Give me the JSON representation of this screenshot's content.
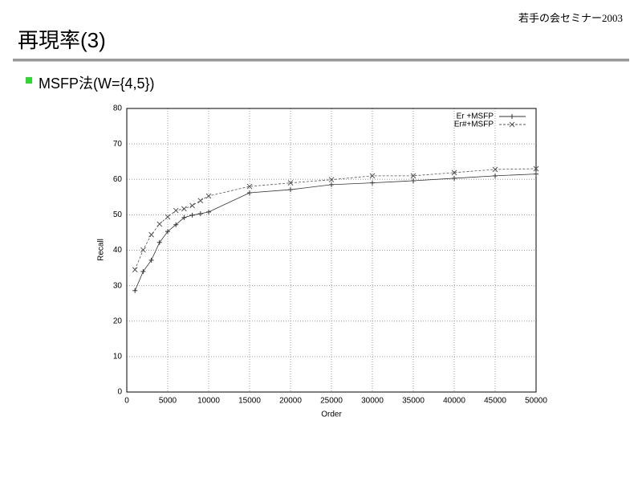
{
  "header": {
    "title": "再現率(3)",
    "seminar": "若手の会セミナー2003"
  },
  "bullet": "MSFP法(W={4,5})",
  "chart_data": {
    "type": "line",
    "x_label": "Order",
    "y_label": "Recall",
    "x": [
      1000,
      2000,
      3000,
      4000,
      5000,
      6000,
      7000,
      8000,
      9000,
      10000,
      15000,
      20000,
      25000,
      30000,
      35000,
      40000,
      45000,
      50000
    ],
    "series": [
      {
        "name": "Er +MSFP",
        "color": "#333333",
        "marker": "+",
        "dashed": false,
        "values": [
          28.6,
          34,
          37.2,
          42.2,
          45.3,
          47.2,
          49.2,
          49.9,
          50.3,
          50.8,
          56.2,
          57.1,
          58.5,
          59,
          59.6,
          60.3,
          61,
          61.5
        ]
      },
      {
        "name": "Er#+MSFP",
        "color": "#555555",
        "marker": "x",
        "dashed": true,
        "values": [
          34.5,
          40.1,
          44.4,
          47.4,
          49.4,
          51.2,
          51.7,
          52.6,
          54,
          55.3,
          58,
          59,
          59.9,
          61,
          61,
          61.9,
          62.8,
          63
        ]
      }
    ],
    "xlim": [
      0,
      50000
    ],
    "xticks": [
      0,
      5000,
      10000,
      15000,
      20000,
      25000,
      30000,
      35000,
      40000,
      45000,
      50000
    ],
    "ylim": [
      0,
      80
    ],
    "yticks": [
      0,
      10,
      20,
      30,
      40,
      50,
      60,
      70,
      80
    ],
    "grid": true,
    "legend": "top-right"
  }
}
